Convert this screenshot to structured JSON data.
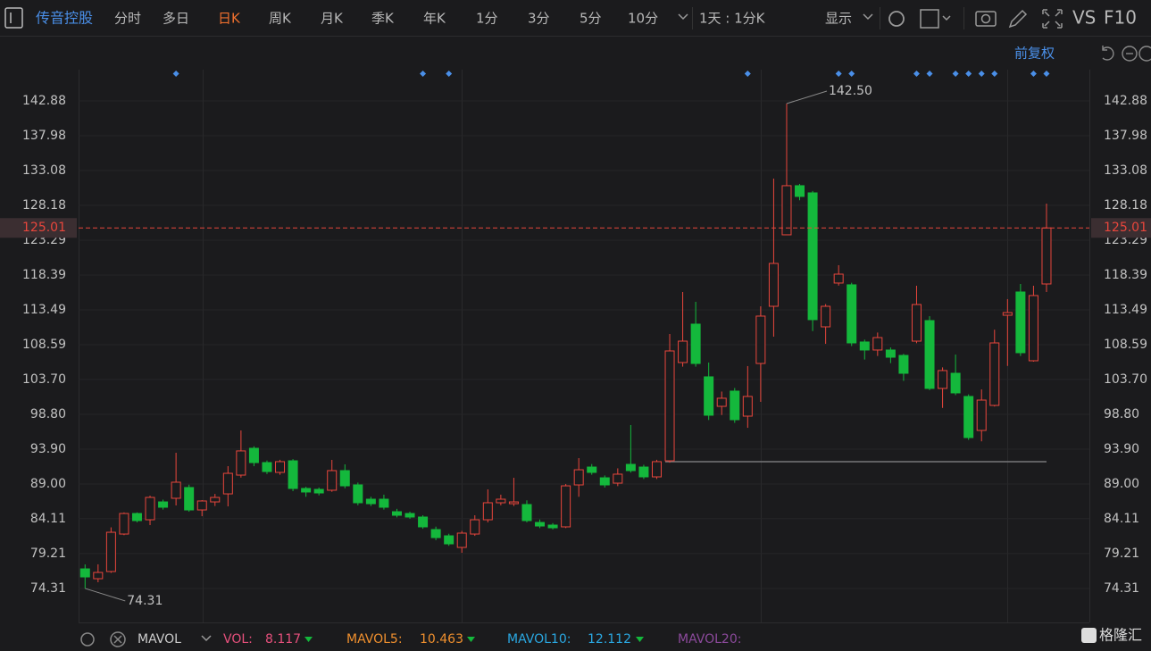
{
  "toolbar": {
    "symbol": "传音控股",
    "periods": [
      "分时",
      "多日",
      "日K",
      "周K",
      "月K",
      "季K",
      "年K",
      "1分",
      "3分",
      "5分",
      "10分"
    ],
    "active_period": 2,
    "right_menu": [
      "1天 : 1分K",
      "显示",
      "VS",
      "F10"
    ],
    "adjust": "前复权"
  },
  "chart_data": {
    "type": "candlestick",
    "open": [
      77.06,
      75.68,
      76.69,
      81.96,
      84.85,
      83.97,
      86.48,
      86.99,
      88.5,
      85.35,
      86.48,
      87.61,
      90.25,
      94.02,
      92.01,
      90.63,
      92.26,
      88.37,
      88.24,
      88.12,
      90.88,
      88.87,
      86.86,
      86.86,
      85.1,
      84.85,
      84.35,
      82.59,
      81.71,
      80.08,
      81.96,
      83.97,
      86.36,
      86.23,
      86.11,
      83.59,
      83.22,
      82.97,
      88.87,
      91.38,
      89.87,
      89.12,
      91.76,
      91.38,
      90.0,
      92.26,
      106.08,
      111.48,
      104.07,
      99.92,
      102.06,
      98.54,
      105.95,
      113.99,
      124.04,
      130.95,
      129.94,
      111.1,
      117.26,
      117.01,
      108.97,
      107.84,
      107.84,
      107.08,
      109.09,
      111.98,
      102.44,
      104.57,
      101.31,
      96.53,
      100.05,
      112.73,
      116.0,
      106.33,
      117.13
    ],
    "high": [
      77.69,
      77.7,
      82.9,
      85.0,
      85.0,
      87.36,
      86.8,
      93.39,
      88.9,
      86.73,
      87.6,
      91.51,
      96.53,
      94.3,
      92.3,
      92.4,
      92.5,
      88.6,
      88.5,
      92.39,
      91.76,
      89.2,
      87.2,
      87.5,
      85.5,
      85.1,
      84.6,
      83.0,
      82.0,
      82.4,
      84.6,
      88.24,
      87.5,
      89.87,
      86.7,
      84.0,
      83.5,
      89.0,
      92.64,
      91.8,
      90.2,
      91.2,
      97.29,
      91.7,
      92.4,
      110.1,
      116.0,
      114.62,
      106.08,
      102.0,
      102.5,
      105.58,
      113.99,
      131.95,
      142.5,
      131.2,
      130.2,
      114.3,
      119.77,
      117.3,
      109.3,
      110.3,
      108.2,
      107.3,
      116.88,
      112.6,
      105.4,
      107.2,
      101.6,
      102.3,
      110.7,
      115.0,
      117.13,
      116.88,
      128.43
    ],
    "low": [
      74.31,
      75.18,
      76.5,
      81.8,
      83.6,
      83.22,
      85.4,
      85.98,
      85.1,
      84.47,
      85.9,
      85.85,
      89.9,
      91.5,
      90.4,
      90.3,
      88.0,
      87.2,
      87.4,
      87.9,
      88.4,
      86.0,
      85.9,
      85.4,
      84.3,
      84.1,
      82.7,
      81.1,
      80.3,
      79.32,
      81.7,
      83.6,
      86.0,
      85.9,
      83.6,
      82.8,
      82.6,
      82.8,
      87.2,
      90.3,
      88.5,
      88.7,
      90.6,
      89.7,
      89.7,
      92.0,
      105.5,
      105.5,
      98.0,
      98.7,
      97.6,
      96.9,
      100.55,
      109.72,
      124.04,
      128.9,
      110.5,
      108.71,
      116.9,
      108.4,
      106.5,
      107.0,
      106.0,
      103.5,
      108.8,
      102.2,
      99.7,
      101.5,
      95.2,
      95.0,
      99.9,
      105.6,
      107.0,
      106.2,
      116.0
    ],
    "close": [
      75.93,
      76.56,
      82.21,
      84.85,
      83.85,
      87.11,
      85.73,
      89.25,
      85.35,
      86.61,
      87.11,
      90.5,
      93.65,
      92.01,
      90.75,
      92.14,
      88.37,
      87.87,
      87.74,
      90.88,
      88.74,
      86.36,
      86.23,
      85.73,
      84.6,
      84.35,
      82.97,
      81.46,
      80.58,
      82.09,
      83.97,
      86.36,
      86.86,
      86.48,
      83.85,
      83.09,
      82.84,
      88.74,
      91.0,
      90.63,
      88.87,
      90.38,
      90.88,
      90.0,
      92.14,
      107.71,
      109.09,
      105.95,
      98.67,
      101.06,
      98.04,
      101.31,
      112.61,
      120.02,
      130.95,
      129.44,
      112.11,
      113.99,
      118.51,
      108.84,
      107.84,
      109.59,
      106.83,
      104.57,
      114.24,
      102.44,
      104.95,
      101.81,
      95.53,
      100.8,
      108.84,
      113.11,
      107.46,
      115.5,
      125.01
    ],
    "up_color": "#e8463c",
    "down_color": "#14b83c",
    "ylim": [
      69.53,
      147.27
    ],
    "yticks": [
      142.88,
      137.98,
      133.08,
      128.18,
      123.29,
      118.39,
      113.49,
      108.59,
      {
        "value": 103.7,
        "label": "103.70"
      },
      {
        "value": 98.8,
        "label": "98.80"
      },
      {
        "value": 93.9,
        "label": "93.90"
      },
      {
        "value": 89,
        "label": "89.00"
      },
      84.11,
      79.21,
      74.31
    ],
    "last_price": 125.01,
    "reference_line": 92.14,
    "annotations": [
      {
        "value": 142.5,
        "label": "142.50",
        "index": 54
      },
      {
        "value": 74.31,
        "index": 0
      }
    ],
    "event_markers": [
      7,
      26,
      28,
      51,
      58,
      59,
      64,
      65,
      67,
      68,
      69,
      70,
      73,
      74
    ]
  },
  "indicator": {
    "name": "MAVOL",
    "items": [
      {
        "name": "VOL:",
        "value": 8.117,
        "color": "#e6507c"
      },
      {
        "name": "MAVOL5:",
        "value": 10.463,
        "color": "#f0902e"
      },
      {
        "name": "MAVOL10:",
        "value": 12.112,
        "color": "#2aa8e2"
      },
      {
        "name": "MAVOL20:",
        "color": "#8c4a9c"
      }
    ]
  },
  "watermark": "格隆汇"
}
